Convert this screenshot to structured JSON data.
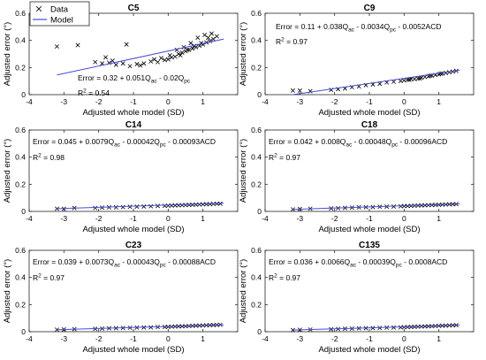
{
  "chart_data": [
    {
      "type": "scatter",
      "title": "C5",
      "xlabel": "Adjusted whole model (SD)",
      "ylabel": "Adjusted error (°)",
      "xlim": [
        -4,
        2
      ],
      "ylim": [
        0,
        0.6
      ],
      "xticks": [
        "-4",
        "-3",
        "-2",
        "-1",
        "0",
        "1"
      ],
      "yticks": [
        "0",
        "0.2",
        "0.4",
        "0.6"
      ],
      "legend": {
        "placement": "top-left",
        "entries": [
          "Data",
          "Model"
        ]
      },
      "equation_parts": [
        {
          "t": "Error = 0.32 + 0.051Q"
        },
        {
          "t": "ac",
          "sub": true
        },
        {
          "t": " - 0.02Q"
        },
        {
          "t": "pc",
          "sub": true
        }
      ],
      "r2_label": "R",
      "r2_exp": "2",
      "r2_value": " = 0.54",
      "fit": {
        "x": [
          -3.2,
          1.6
        ],
        "y": [
          0.145,
          0.41
        ]
      },
      "x": [
        -3.2,
        -2.6,
        -1.8,
        -1.2,
        -2.1,
        -1.9,
        -1.7,
        -1.5,
        -1.3,
        -1.1,
        -0.9,
        -0.7,
        -0.5,
        -0.3,
        -0.1,
        0.0,
        0.1,
        0.2,
        0.3,
        0.4,
        0.5,
        0.6,
        0.7,
        0.8,
        0.9,
        1.0,
        1.1,
        1.2,
        1.3,
        1.4,
        -1.6,
        -0.8,
        -0.2,
        0.35,
        0.55,
        0.75,
        0.95,
        1.15,
        0.25,
        0.45,
        0.65,
        0.85,
        1.05,
        1.25,
        -0.4,
        0.05
      ],
      "y": [
        0.355,
        0.365,
        0.275,
        0.37,
        0.24,
        0.23,
        0.235,
        0.22,
        0.23,
        0.21,
        0.225,
        0.23,
        0.245,
        0.24,
        0.255,
        0.26,
        0.275,
        0.28,
        0.3,
        0.31,
        0.32,
        0.33,
        0.34,
        0.35,
        0.36,
        0.37,
        0.385,
        0.395,
        0.41,
        0.43,
        0.25,
        0.215,
        0.27,
        0.29,
        0.33,
        0.36,
        0.38,
        0.42,
        0.33,
        0.35,
        0.38,
        0.42,
        0.44,
        0.45,
        0.26,
        0.29
      ]
    },
    {
      "type": "scatter",
      "title": "C9",
      "xlabel": "Adjusted whole model (SD)",
      "ylabel": "Adjusted error (°)",
      "xlim": [
        -4,
        2
      ],
      "ylim": [
        0,
        0.6
      ],
      "xticks": [
        "-4",
        "-3",
        "-2",
        "-1",
        "0",
        "1"
      ],
      "yticks": [
        "0",
        "0.2",
        "0.4",
        "0.6"
      ],
      "equation_parts": [
        {
          "t": "Error = 0.11 + 0.038Q"
        },
        {
          "t": "ac",
          "sub": true
        },
        {
          "t": " - 0.0034Q"
        },
        {
          "t": "pc",
          "sub": true
        },
        {
          "t": " - 0.0052ACD"
        }
      ],
      "r2_label": "R",
      "r2_exp": "2",
      "r2_value": " = 0.97",
      "fit": {
        "x": [
          -3.2,
          1.6
        ],
        "y": [
          0.0,
          0.18
        ]
      },
      "x": [
        -3.2,
        -3.0,
        -2.7,
        -2.1,
        -1.9,
        -1.7,
        -1.5,
        -1.3,
        -1.1,
        -0.9,
        -0.7,
        -0.5,
        -0.3,
        -0.1,
        0.0,
        0.1,
        0.2,
        0.3,
        0.4,
        0.5,
        0.6,
        0.7,
        0.8,
        0.9,
        1.0,
        1.1,
        1.2,
        1.3,
        1.4,
        1.5,
        0.15,
        0.45,
        0.75,
        1.05
      ],
      "y": [
        0.03,
        0.03,
        0.025,
        0.035,
        0.04,
        0.045,
        0.055,
        0.06,
        0.07,
        0.075,
        0.08,
        0.09,
        0.095,
        0.1,
        0.105,
        0.11,
        0.115,
        0.115,
        0.12,
        0.125,
        0.13,
        0.135,
        0.14,
        0.145,
        0.15,
        0.155,
        0.16,
        0.165,
        0.17,
        0.175,
        0.11,
        0.12,
        0.14,
        0.155
      ]
    },
    {
      "type": "scatter",
      "title": "C14",
      "xlabel": "Adjusted whole model (SD)",
      "ylabel": "Adjusted error (°)",
      "xlim": [
        -4,
        2
      ],
      "ylim": [
        0,
        0.6
      ],
      "xticks": [
        "-4",
        "-3",
        "-2",
        "-1",
        "0",
        "1"
      ],
      "yticks": [
        "0",
        "0.2",
        "0.4",
        "0.6"
      ],
      "equation_parts": [
        {
          "t": "Error = 0.045 + 0.0079Q"
        },
        {
          "t": "ac",
          "sub": true
        },
        {
          "t": " - 0.00042Q"
        },
        {
          "t": "pc",
          "sub": true
        },
        {
          "t": " - 0.00093ACD"
        }
      ],
      "r2_label": "R",
      "r2_exp": "2",
      "r2_value": " = 0.98",
      "fit": {
        "x": [
          -3.2,
          1.6
        ],
        "y": [
          0.02,
          0.06
        ]
      },
      "x": [
        -3.2,
        -3.0,
        -2.7,
        -2.1,
        -1.9,
        -1.7,
        -1.5,
        -1.3,
        -1.1,
        -0.9,
        -0.7,
        -0.5,
        -0.3,
        -0.1,
        0.0,
        0.1,
        0.2,
        0.3,
        0.4,
        0.5,
        0.6,
        0.7,
        0.8,
        0.9,
        1.0,
        1.1,
        1.2,
        1.3,
        1.4,
        1.5
      ],
      "y": [
        0.02,
        0.02,
        0.025,
        0.025,
        0.028,
        0.03,
        0.03,
        0.032,
        0.034,
        0.035,
        0.036,
        0.038,
        0.04,
        0.041,
        0.042,
        0.043,
        0.044,
        0.045,
        0.046,
        0.047,
        0.048,
        0.049,
        0.05,
        0.051,
        0.052,
        0.053,
        0.054,
        0.055,
        0.056,
        0.057
      ]
    },
    {
      "type": "scatter",
      "title": "C18",
      "xlabel": "Adjusted whole model (SD)",
      "ylabel": "Adjusted error (°)",
      "xlim": [
        -4,
        2
      ],
      "ylim": [
        0,
        0.6
      ],
      "xticks": [
        "-4",
        "-3",
        "-2",
        "-1",
        "0",
        "1"
      ],
      "yticks": [
        "0",
        "0.2",
        "0.4",
        "0.6"
      ],
      "equation_parts": [
        {
          "t": "Error = 0.042 + 0.008Q"
        },
        {
          "t": "ac",
          "sub": true
        },
        {
          "t": " - 0.00048Q"
        },
        {
          "t": "pc",
          "sub": true
        },
        {
          "t": " - 0.00096ACD"
        }
      ],
      "r2_label": "R",
      "r2_exp": "2",
      "r2_value": " = 0.97",
      "fit": {
        "x": [
          -3.2,
          1.6
        ],
        "y": [
          0.015,
          0.055
        ]
      },
      "x": [
        -3.2,
        -3.0,
        -2.7,
        -2.1,
        -1.9,
        -1.7,
        -1.5,
        -1.3,
        -1.1,
        -0.9,
        -0.7,
        -0.5,
        -0.3,
        -0.1,
        0.0,
        0.1,
        0.2,
        0.3,
        0.4,
        0.5,
        0.6,
        0.7,
        0.8,
        0.9,
        1.0,
        1.1,
        1.2,
        1.3,
        1.4,
        1.5
      ],
      "y": [
        0.015,
        0.018,
        0.02,
        0.022,
        0.024,
        0.026,
        0.028,
        0.03,
        0.031,
        0.032,
        0.034,
        0.035,
        0.036,
        0.038,
        0.039,
        0.04,
        0.041,
        0.042,
        0.043,
        0.044,
        0.045,
        0.046,
        0.047,
        0.048,
        0.049,
        0.05,
        0.051,
        0.052,
        0.053,
        0.054
      ]
    },
    {
      "type": "scatter",
      "title": "C23",
      "xlabel": "Adjusted whole model (SD)",
      "ylabel": "Adjusted error (°)",
      "xlim": [
        -4,
        2
      ],
      "ylim": [
        0,
        0.6
      ],
      "xticks": [
        "-4",
        "-3",
        "-2",
        "-1",
        "0",
        "1"
      ],
      "yticks": [
        "0",
        "0.2",
        "0.4",
        "0.6"
      ],
      "equation_parts": [
        {
          "t": "Error = 0.039 + 0.0073Q"
        },
        {
          "t": "ac",
          "sub": true
        },
        {
          "t": " - 0.00043Q"
        },
        {
          "t": "pc",
          "sub": true
        },
        {
          "t": " - 0.00088ACD"
        }
      ],
      "r2_label": "R",
      "r2_exp": "2",
      "r2_value": " = 0.97",
      "fit": {
        "x": [
          -3.2,
          1.6
        ],
        "y": [
          0.015,
          0.05
        ]
      },
      "x": [
        -3.2,
        -3.0,
        -2.7,
        -2.1,
        -1.9,
        -1.7,
        -1.5,
        -1.3,
        -1.1,
        -0.9,
        -0.7,
        -0.5,
        -0.3,
        -0.1,
        0.0,
        0.1,
        0.2,
        0.3,
        0.4,
        0.5,
        0.6,
        0.7,
        0.8,
        0.9,
        1.0,
        1.1,
        1.2,
        1.3,
        1.4,
        1.5
      ],
      "y": [
        0.015,
        0.017,
        0.019,
        0.021,
        0.023,
        0.025,
        0.026,
        0.028,
        0.029,
        0.03,
        0.031,
        0.032,
        0.034,
        0.035,
        0.036,
        0.037,
        0.038,
        0.039,
        0.04,
        0.041,
        0.042,
        0.043,
        0.044,
        0.045,
        0.046,
        0.047,
        0.048,
        0.049,
        0.05,
        0.051
      ]
    },
    {
      "type": "scatter",
      "title": "C135",
      "xlabel": "Adjusted whole model (SD)",
      "ylabel": "Adjusted error (°)",
      "xlim": [
        -4,
        2
      ],
      "ylim": [
        0,
        0.6
      ],
      "xticks": [
        "-4",
        "-3",
        "-2",
        "-1",
        "0",
        "1"
      ],
      "yticks": [
        "0",
        "0.2",
        "0.4",
        "0.6"
      ],
      "equation_parts": [
        {
          "t": "Error = 0.036 + 0.0066Q"
        },
        {
          "t": "ac",
          "sub": true
        },
        {
          "t": " - 0.00039Q"
        },
        {
          "t": "pc",
          "sub": true
        },
        {
          "t": " - 0.0008ACD"
        }
      ],
      "r2_label": "R",
      "r2_exp": "2",
      "r2_value": " = 0.97",
      "fit": {
        "x": [
          -3.2,
          1.6
        ],
        "y": [
          0.012,
          0.048
        ]
      },
      "x": [
        -3.2,
        -3.0,
        -2.7,
        -2.1,
        -1.9,
        -1.7,
        -1.5,
        -1.3,
        -1.1,
        -0.9,
        -0.7,
        -0.5,
        -0.3,
        -0.1,
        0.0,
        0.1,
        0.2,
        0.3,
        0.4,
        0.5,
        0.6,
        0.7,
        0.8,
        0.9,
        1.0,
        1.1,
        1.2,
        1.3,
        1.4,
        1.5
      ],
      "y": [
        0.012,
        0.014,
        0.016,
        0.018,
        0.02,
        0.022,
        0.023,
        0.025,
        0.026,
        0.027,
        0.028,
        0.03,
        0.031,
        0.032,
        0.033,
        0.034,
        0.035,
        0.036,
        0.037,
        0.038,
        0.039,
        0.04,
        0.041,
        0.042,
        0.043,
        0.044,
        0.045,
        0.046,
        0.047,
        0.048
      ]
    }
  ],
  "colors": {
    "marker": "#000000",
    "fit": "#4a4ad6",
    "axis": "#262626"
  }
}
